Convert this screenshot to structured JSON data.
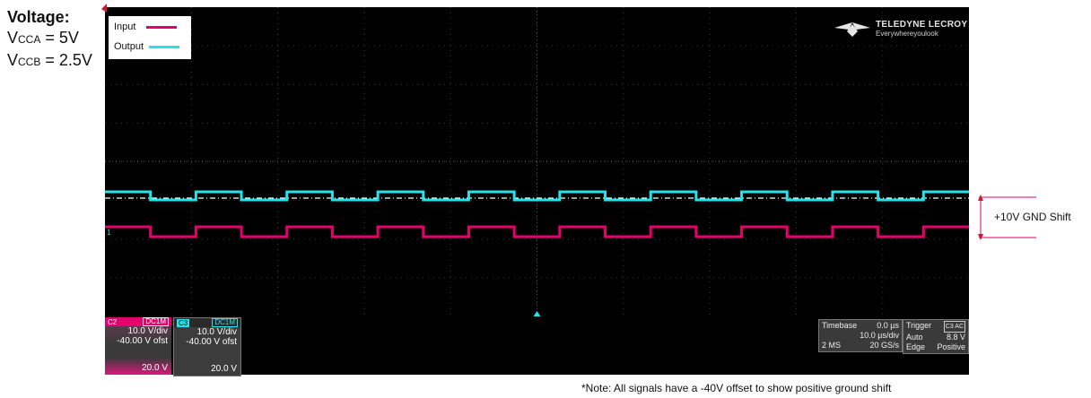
{
  "voltage_block": {
    "title": "Voltage:",
    "vcca_prefix": "V",
    "vcca_sub": "CCA",
    "vcca_value": " = 5V",
    "vccb_prefix": "V",
    "vccb_sub": "CCB",
    "vccb_value": " = 2.5V"
  },
  "legend": {
    "input_label": "Input",
    "output_label": "Output",
    "input_color": "#e5006e",
    "output_color": "#22e3ee"
  },
  "brand": {
    "name": "TELEDYNE LECROY",
    "tagline": "Everywhereyoulook"
  },
  "channels": [
    {
      "id": "C2",
      "coupling": "DC1M",
      "vdiv": "10.0 V/div",
      "offset": "-40.00 V ofst",
      "footer": "20.0 V",
      "color": "#e5006e"
    },
    {
      "id": "C3",
      "coupling": "DC1M",
      "vdiv": "10.0 V/div",
      "offset": "-40.00 V ofst",
      "footer": "20.0 V",
      "color": "#22e3ee"
    }
  ],
  "timebase": {
    "label": "Timebase",
    "delay": "0.0 µs",
    "per_div": "10.0 µs/div",
    "samples": "2 MS",
    "rate": "20 GS/s"
  },
  "trigger": {
    "label": "Trigger",
    "tags": "C3 AC",
    "mode": "Auto",
    "level": "8.8 V",
    "type": "Edge",
    "slope": "Positive"
  },
  "ground_marker": "1",
  "annotation": "+10V GND Shift",
  "note": "*Note: All signals have a -40V offset to show positive ground shift",
  "waveform": {
    "output_high_low": [
      1,
      0,
      1,
      0,
      1,
      0,
      1,
      0,
      1,
      0,
      1,
      0,
      1,
      0,
      1,
      0,
      1,
      0,
      1
    ],
    "input_high_low": [
      1,
      0,
      1,
      0,
      1,
      0,
      1,
      0,
      1,
      0,
      1,
      0,
      1,
      0,
      1,
      0,
      1,
      0,
      1
    ]
  }
}
